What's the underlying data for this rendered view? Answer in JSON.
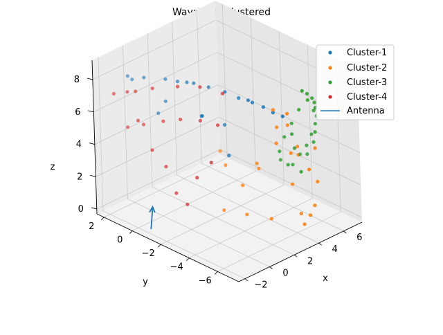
{
  "chart_data": {
    "type": "scatter",
    "projection": "3d",
    "title": "Waypoints clustered",
    "xlabel": "x",
    "ylabel": "y",
    "zlabel": "z",
    "xlim": [
      -2.5,
      7.5
    ],
    "ylim": [
      -7.5,
      2.5
    ],
    "zlim": [
      -0.3,
      9.2
    ],
    "xticks": [
      -2,
      0,
      2,
      4,
      6
    ],
    "yticks": [
      2,
      0,
      -2,
      -4,
      -6
    ],
    "zticks": [
      0,
      2,
      4,
      6,
      8
    ],
    "xtick_labels": [
      "−2",
      "0",
      "2",
      "4",
      "6"
    ],
    "ytick_labels": [
      "2",
      "0",
      "−2",
      "−4",
      "−6"
    ],
    "ztick_labels": [
      "0",
      "2",
      "4",
      "6",
      "8"
    ],
    "grid": true,
    "legend_position": "top-right",
    "series": [
      {
        "name": "Cluster-1",
        "color": "#1f77b4",
        "points": [
          [
            -1.6,
            0.8,
            8.6
          ],
          [
            -1.2,
            0.0,
            8.7
          ],
          [
            -0.6,
            -1.0,
            8.8
          ],
          [
            -0.3,
            -1.6,
            8.8
          ],
          [
            0.2,
            -2.3,
            8.8
          ],
          [
            0.6,
            -3.0,
            8.7
          ],
          [
            1.0,
            -3.8,
            8.6
          ],
          [
            1.3,
            -4.5,
            8.4
          ],
          [
            1.6,
            -5.2,
            8.3
          ],
          [
            1.8,
            -5.8,
            8.2
          ],
          [
            2.0,
            -6.3,
            8.0
          ],
          [
            2.2,
            -6.8,
            7.9
          ],
          [
            -1.7,
            0.4,
            8.6
          ],
          [
            0.0,
            -2.0,
            8.8
          ],
          [
            1.5,
            -5.0,
            8.4
          ],
          [
            -0.3,
            -0.7,
            7.2
          ],
          [
            -0.8,
            -0.6,
            6.6
          ],
          [
            -0.2,
            -3.2,
            7.3
          ],
          [
            0.9,
            -3.8,
            6.6
          ],
          [
            0.3,
            -2.7,
            6.9
          ],
          [
            0.5,
            -4.4,
            5.1
          ]
        ]
      },
      {
        "name": "Cluster-2",
        "color": "#ff7f0e",
        "points": [
          [
            3.8,
            -6.7,
            0.6
          ],
          [
            4.4,
            -6.6,
            0.9
          ],
          [
            5.0,
            -6.4,
            1.2
          ],
          [
            3.6,
            -6.1,
            2.9
          ],
          [
            4.0,
            -5.7,
            4.5
          ],
          [
            4.7,
            -5.6,
            4.1
          ],
          [
            5.1,
            -5.2,
            4.3
          ],
          [
            5.5,
            -6.2,
            2.4
          ],
          [
            2.4,
            -5.6,
            1.0
          ],
          [
            1.9,
            -4.3,
            0.9
          ],
          [
            1.2,
            -3.3,
            1.0
          ],
          [
            2.3,
            -3.7,
            2.3
          ],
          [
            3.3,
            -4.0,
            3.1
          ],
          [
            2.7,
            -4.4,
            3.8
          ],
          [
            3.3,
            -5.3,
            5.2
          ],
          [
            3.6,
            -5.1,
            6.0
          ],
          [
            3.8,
            -5.7,
            6.3
          ],
          [
            2.9,
            -5.5,
            7.5
          ],
          [
            3.0,
            -6.4,
            7.6
          ],
          [
            4.3,
            -6.7,
            3.8
          ],
          [
            4.6,
            -6.9,
            5.1
          ],
          [
            3.9,
            -6.4,
            1.1
          ],
          [
            2.1,
            -2.7,
            3.2
          ],
          [
            1.6,
            -2.8,
            4.3
          ]
        ]
      },
      {
        "name": "Cluster-3",
        "color": "#2ca02c",
        "points": [
          [
            6.3,
            -4.3,
            3.0
          ],
          [
            6.5,
            -4.6,
            3.6
          ],
          [
            6.7,
            -4.8,
            4.3
          ],
          [
            6.8,
            -5.0,
            5.0
          ],
          [
            6.7,
            -5.2,
            5.6
          ],
          [
            6.4,
            -5.4,
            6.3
          ],
          [
            6.0,
            -5.7,
            6.9
          ],
          [
            5.6,
            -5.9,
            7.4
          ],
          [
            5.1,
            -6.0,
            7.9
          ],
          [
            4.6,
            -6.1,
            8.3
          ],
          [
            5.8,
            -4.2,
            2.5
          ],
          [
            5.2,
            -4.4,
            2.8
          ],
          [
            4.5,
            -4.5,
            3.4
          ],
          [
            4.1,
            -4.8,
            4.2
          ],
          [
            4.3,
            -5.0,
            5.1
          ],
          [
            4.8,
            -5.1,
            5.8
          ],
          [
            5.3,
            -5.2,
            6.5
          ],
          [
            5.8,
            -5.4,
            7.0
          ],
          [
            6.2,
            -4.9,
            3.3
          ],
          [
            6.4,
            -5.2,
            4.1
          ],
          [
            6.1,
            -5.6,
            5.0
          ],
          [
            5.7,
            -5.9,
            6.6
          ],
          [
            5.0,
            -5.5,
            2.9
          ],
          [
            4.3,
            -5.7,
            4.7
          ],
          [
            3.9,
            -5.9,
            5.8
          ]
        ]
      },
      {
        "name": "Cluster-4",
        "color": "#d62728",
        "points": [
          [
            -1.6,
            0.9,
            5.4
          ],
          [
            -1.0,
            0.3,
            5.6
          ],
          [
            -0.2,
            -0.4,
            5.8
          ],
          [
            0.5,
            -1.0,
            5.9
          ],
          [
            1.2,
            -1.8,
            5.9
          ],
          [
            1.8,
            -2.5,
            5.7
          ],
          [
            -2.0,
            0.5,
            7.9
          ],
          [
            -1.1,
            -0.5,
            8.2
          ],
          [
            -0.2,
            -1.5,
            8.4
          ],
          [
            0.8,
            -2.2,
            8.3
          ],
          [
            1.7,
            -3.0,
            7.9
          ],
          [
            -2.1,
            -0.3,
            6.5
          ],
          [
            -1.6,
            -0.8,
            4.7
          ],
          [
            -1.1,
            -1.3,
            3.7
          ],
          [
            -0.9,
            -1.8,
            2.2
          ],
          [
            -0.6,
            -2.3,
            1.6
          ],
          [
            -0.1,
            -2.6,
            3.2
          ],
          [
            0.4,
            -3.2,
            4.2
          ],
          [
            -2.3,
            1.2,
            7.6
          ],
          [
            -1.9,
            0.0,
            8.1
          ]
        ]
      },
      {
        "name": "Antenna",
        "color": "#1f77b4",
        "type": "line",
        "segment": [
          [
            -2.0,
            -0.9,
            0.0
          ],
          [
            -0.6,
            0.2,
            0.4
          ]
        ]
      }
    ]
  }
}
